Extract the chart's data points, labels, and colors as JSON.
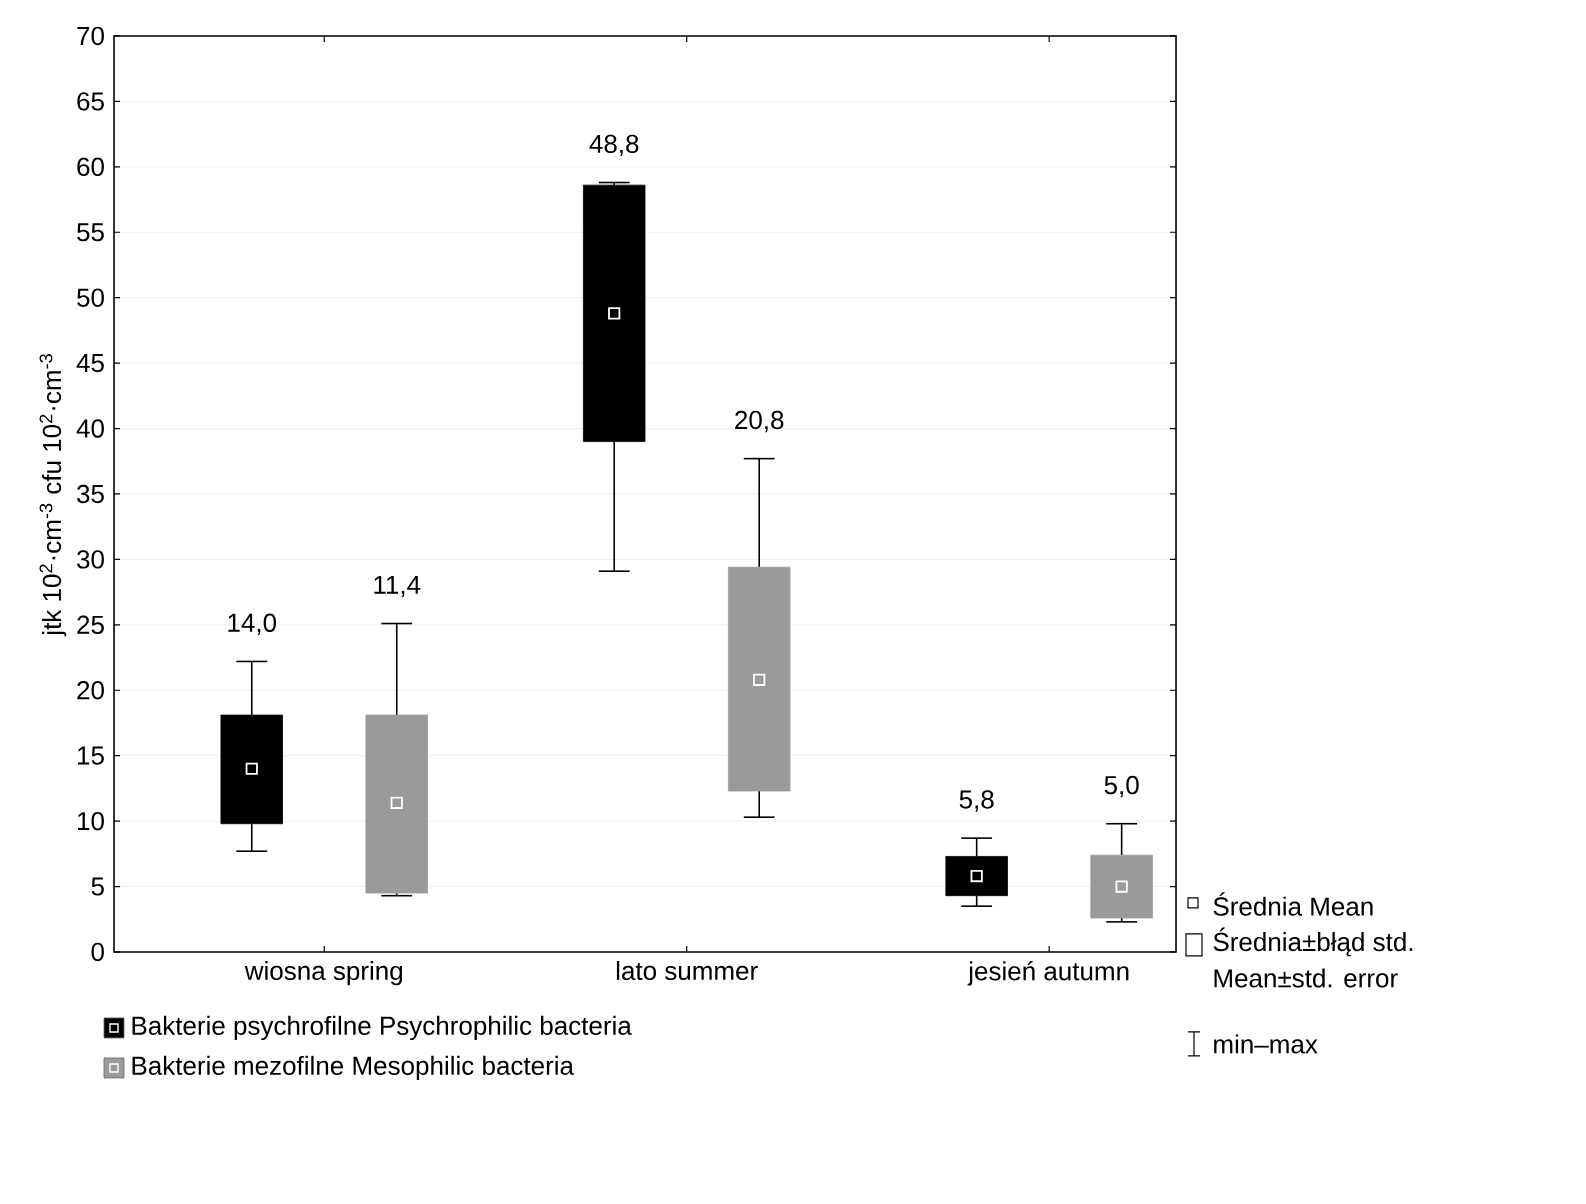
{
  "chart_data": {
    "type": "box",
    "ylabel": "jtk 10$^{2}$·cm$^{-3}$   cfu 10$^{2}$·cm$^{-3}$",
    "categories": [
      "wiosna  spring",
      "lato  summer",
      "jesień  autumn"
    ],
    "ylim": [
      0,
      70
    ],
    "yticks": [
      0,
      5,
      10,
      15,
      20,
      25,
      30,
      35,
      40,
      45,
      50,
      55,
      60,
      65,
      70
    ],
    "grid": "y",
    "legend": "bottom left",
    "series": [
      {
        "name": "Bakterie psychrofilne   Psychrophilic bacteria",
        "color": "#000000",
        "value_labels": [
          "14,0",
          "48,8",
          "5,8"
        ],
        "boxes": [
          {
            "low": 7.7,
            "q1": 9.8,
            "q3": 18.1,
            "high": 22.2,
            "mean": 14.0
          },
          {
            "low": 29.1,
            "q1": 39.0,
            "q3": 58.6,
            "high": 58.8,
            "mean": 48.8
          },
          {
            "low": 3.5,
            "q1": 4.3,
            "q3": 7.3,
            "high": 8.7,
            "mean": 5.8
          }
        ]
      },
      {
        "name": "Bakterie mezofilne   Mesophilic bacteria",
        "color": "#9a9a9a",
        "value_labels": [
          "11,4",
          "20,8",
          "5,0"
        ],
        "boxes": [
          {
            "low": 4.3,
            "q1": 4.5,
            "q3": 18.1,
            "high": 25.1,
            "mean": 11.4
          },
          {
            "low": 10.3,
            "q1": 12.3,
            "q3": 29.4,
            "high": 37.7,
            "mean": 20.8
          },
          {
            "low": 2.3,
            "q1": 2.6,
            "q3": 7.4,
            "high": 9.8,
            "mean": 5.0
          }
        ]
      }
    ],
    "annotations": [
      "Średnia   Mean",
      "Średnia±błąd std.",
      "Mean±std. error",
      "min–max"
    ]
  }
}
